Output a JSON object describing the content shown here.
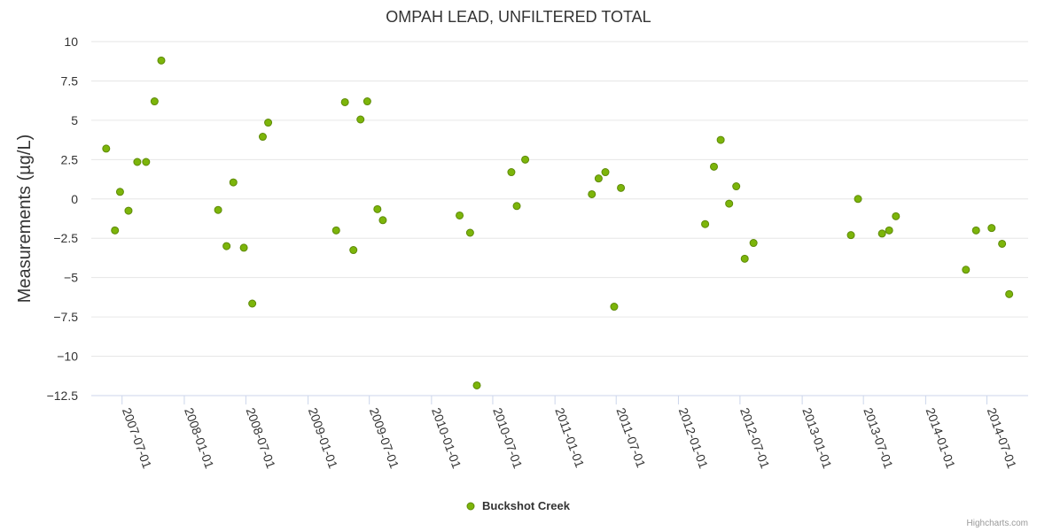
{
  "chart_data": {
    "type": "scatter",
    "title": "OMPAH LEAD, UNFILTERED TOTAL",
    "ylabel": "Measurements (µg/L)",
    "xlabel": "",
    "ylim": [
      -12.5,
      10
    ],
    "y_ticks": [
      "10",
      "7.5",
      "5",
      "2.5",
      "0",
      "−2.5",
      "−5",
      "−7.5",
      "−10",
      "−12.5"
    ],
    "y_tick_values": [
      10,
      7.5,
      5,
      2.5,
      0,
      -2.5,
      -5,
      -7.5,
      -10,
      -12.5
    ],
    "xlim": [
      "2007-04-01",
      "2014-10-31"
    ],
    "x_ticks": [
      "2007-07-01",
      "2008-01-01",
      "2008-07-01",
      "2009-01-01",
      "2009-07-01",
      "2010-01-01",
      "2010-07-01",
      "2011-01-01",
      "2011-07-01",
      "2012-01-01",
      "2012-07-01",
      "2013-01-01",
      "2013-07-01",
      "2014-01-01",
      "2014-07-01"
    ],
    "grid": true,
    "legend": "bottom-center",
    "series": [
      {
        "name": "Buckshot Creek",
        "color": "#7cb50a",
        "points": [
          {
            "x": "2007-05-15",
            "y": 3.2
          },
          {
            "x": "2007-06-10",
            "y": -2.0
          },
          {
            "x": "2007-06-25",
            "y": 0.45
          },
          {
            "x": "2007-07-20",
            "y": -0.75
          },
          {
            "x": "2007-08-15",
            "y": 2.35
          },
          {
            "x": "2007-09-10",
            "y": 2.35
          },
          {
            "x": "2007-10-05",
            "y": 6.2
          },
          {
            "x": "2007-10-25",
            "y": 8.8
          },
          {
            "x": "2008-04-10",
            "y": -0.7
          },
          {
            "x": "2008-05-05",
            "y": -3.0
          },
          {
            "x": "2008-05-25",
            "y": 1.05
          },
          {
            "x": "2008-06-25",
            "y": -3.1
          },
          {
            "x": "2008-07-20",
            "y": -6.65
          },
          {
            "x": "2008-08-20",
            "y": 3.95
          },
          {
            "x": "2008-09-05",
            "y": 4.85
          },
          {
            "x": "2009-03-25",
            "y": -2.0
          },
          {
            "x": "2009-04-20",
            "y": 6.15
          },
          {
            "x": "2009-05-15",
            "y": -3.25
          },
          {
            "x": "2009-06-05",
            "y": 5.05
          },
          {
            "x": "2009-06-25",
            "y": 6.2
          },
          {
            "x": "2009-07-25",
            "y": -0.65
          },
          {
            "x": "2009-08-10",
            "y": -1.35
          },
          {
            "x": "2010-03-25",
            "y": -1.05
          },
          {
            "x": "2010-04-25",
            "y": -2.15
          },
          {
            "x": "2010-05-15",
            "y": -11.85
          },
          {
            "x": "2010-08-25",
            "y": 1.7
          },
          {
            "x": "2010-09-10",
            "y": -0.45
          },
          {
            "x": "2010-10-05",
            "y": 2.5
          },
          {
            "x": "2011-04-20",
            "y": 0.3
          },
          {
            "x": "2011-05-10",
            "y": 1.3
          },
          {
            "x": "2011-05-30",
            "y": 1.7
          },
          {
            "x": "2011-06-25",
            "y": -6.85
          },
          {
            "x": "2011-07-15",
            "y": 0.7
          },
          {
            "x": "2012-03-20",
            "y": -1.6
          },
          {
            "x": "2012-04-15",
            "y": 2.05
          },
          {
            "x": "2012-05-05",
            "y": 3.75
          },
          {
            "x": "2012-05-30",
            "y": -0.3
          },
          {
            "x": "2012-06-20",
            "y": 0.8
          },
          {
            "x": "2012-07-15",
            "y": -3.8
          },
          {
            "x": "2012-08-10",
            "y": -2.8
          },
          {
            "x": "2013-05-25",
            "y": -2.3
          },
          {
            "x": "2013-06-15",
            "y": 0.0
          },
          {
            "x": "2013-08-25",
            "y": -2.2
          },
          {
            "x": "2013-09-15",
            "y": -2.0
          },
          {
            "x": "2013-10-05",
            "y": -1.1
          },
          {
            "x": "2014-04-30",
            "y": -4.5
          },
          {
            "x": "2014-05-30",
            "y": -2.0
          },
          {
            "x": "2014-07-15",
            "y": -1.85
          },
          {
            "x": "2014-08-15",
            "y": -2.85
          },
          {
            "x": "2014-09-05",
            "y": -6.05
          }
        ]
      }
    ]
  },
  "credits": "Highcharts.com"
}
